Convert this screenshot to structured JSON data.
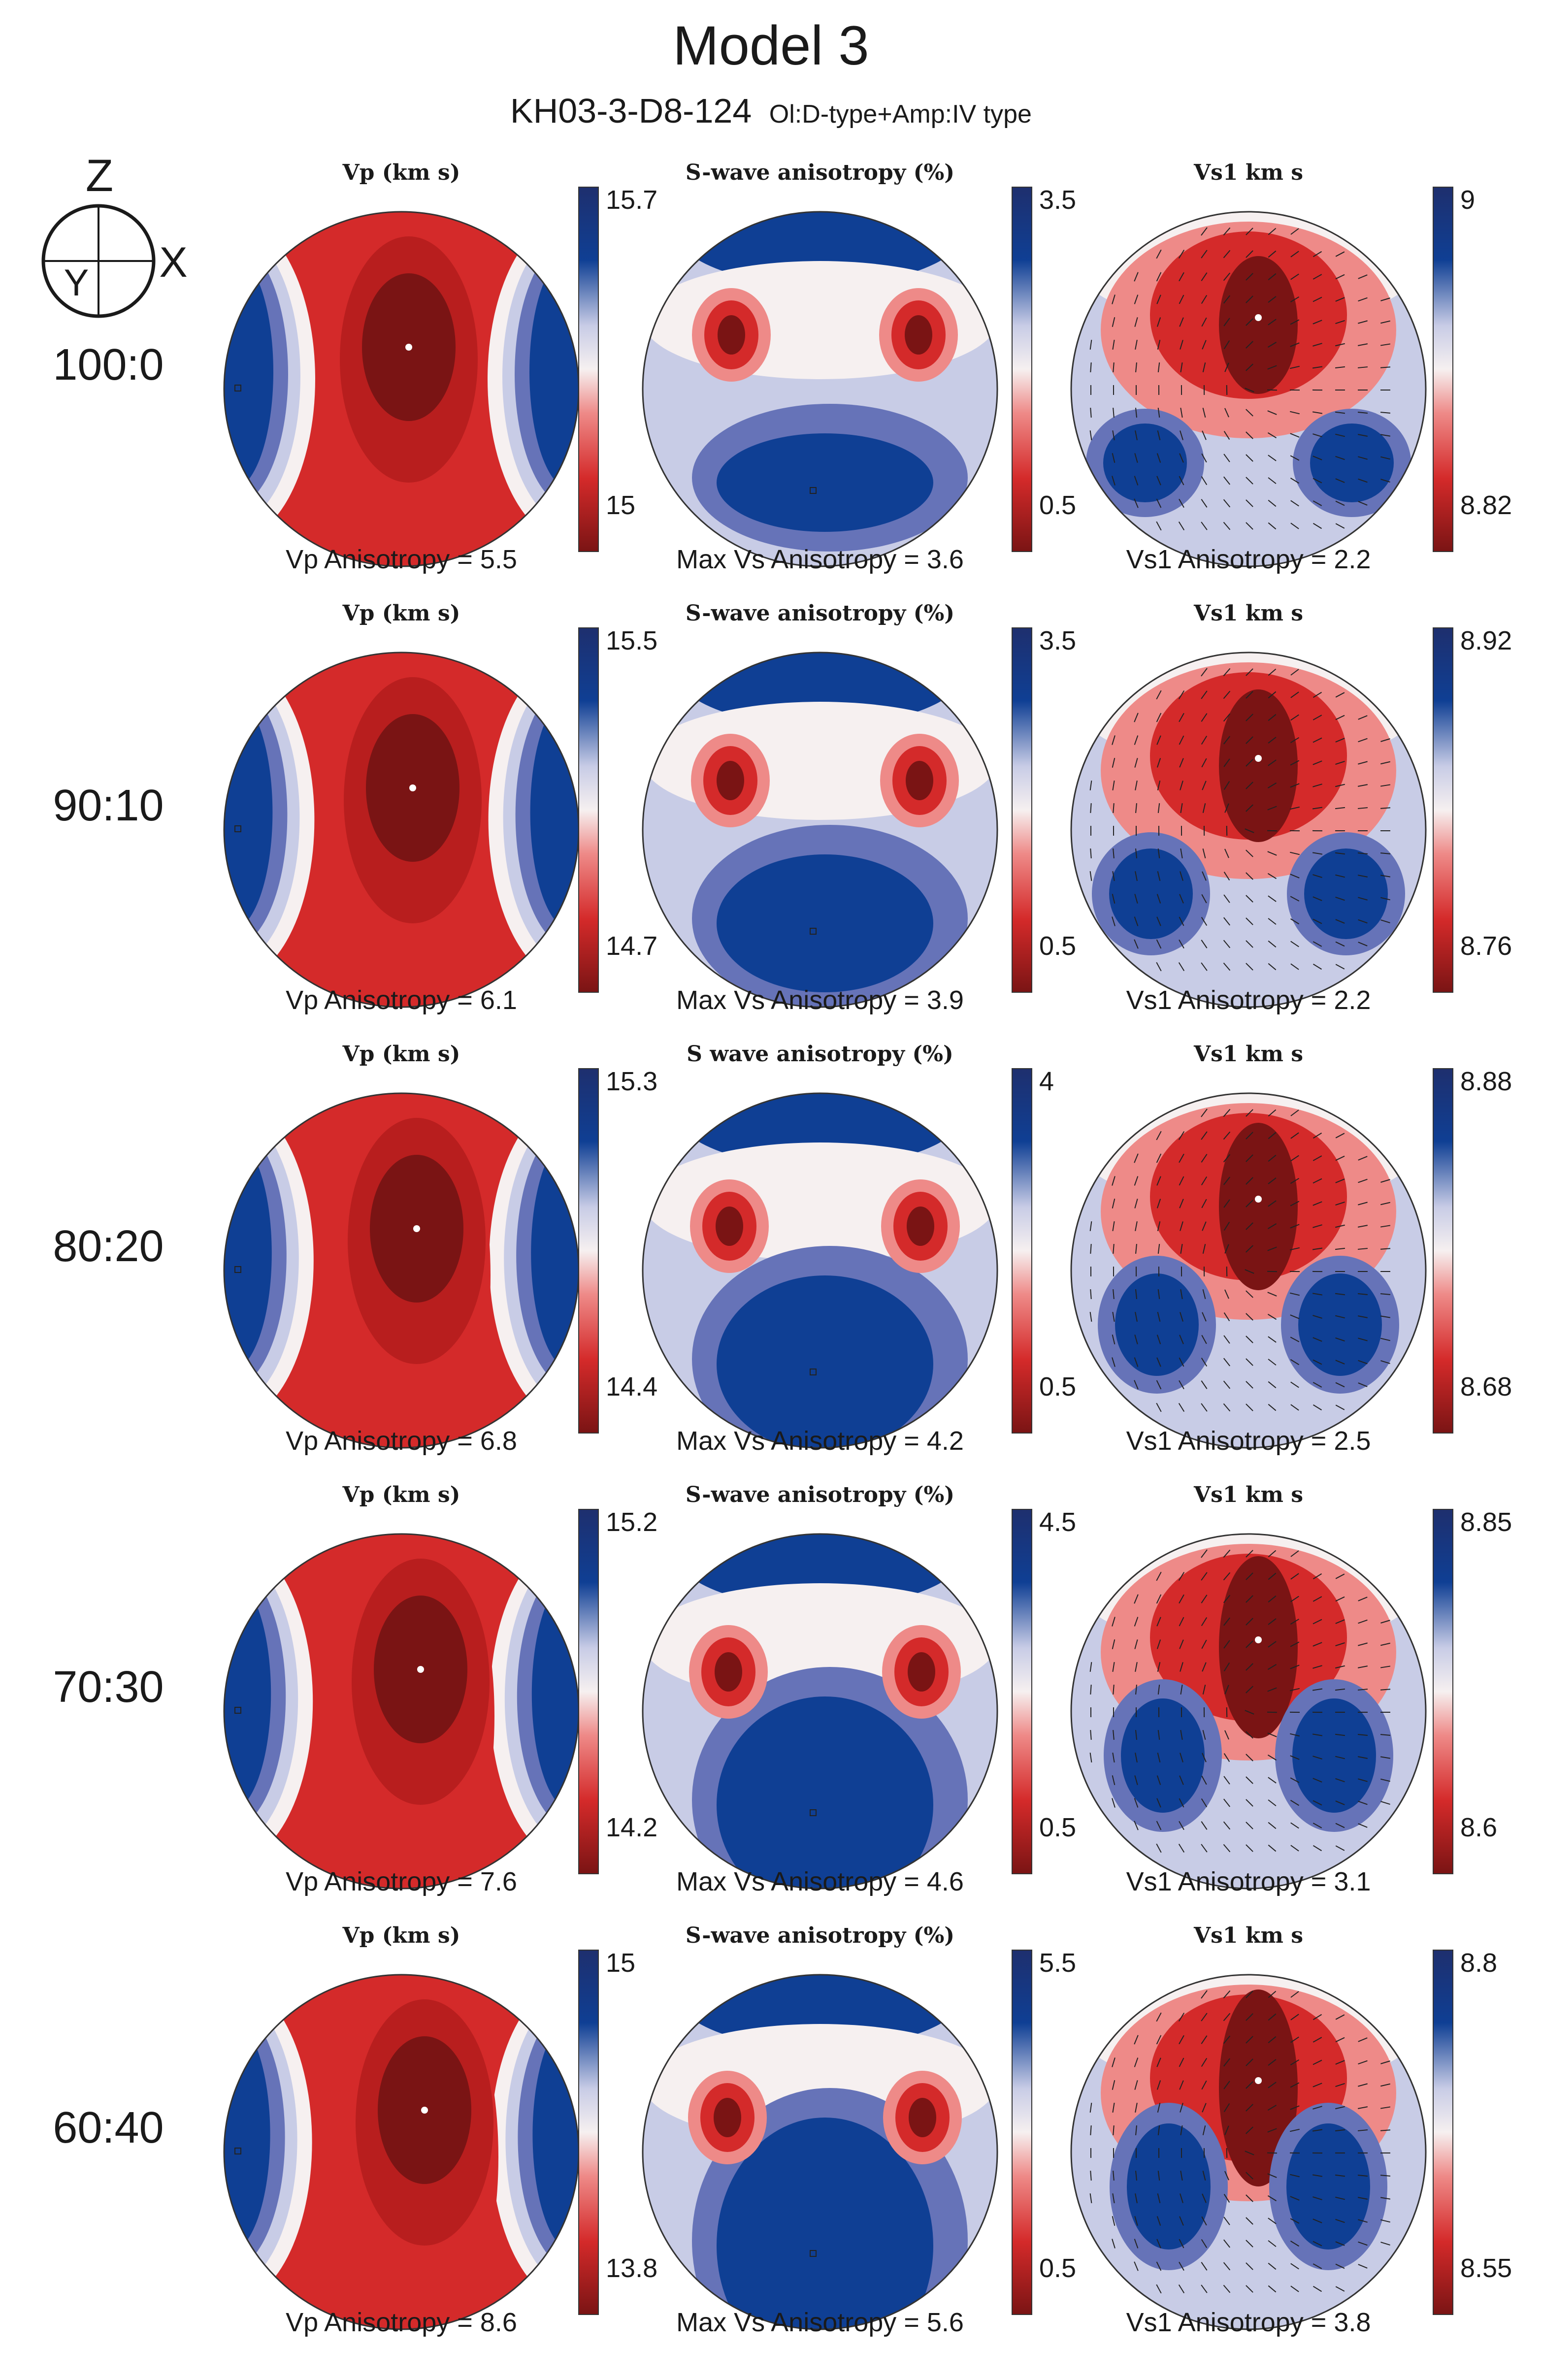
{
  "figure": {
    "title": "Model 3",
    "sample": "KH03-3-D8-124",
    "sample_type": "Ol:D-type+Amp:IV type",
    "axes_key": {
      "top": "Z",
      "right": "X",
      "center": "Y"
    }
  },
  "rows": [
    {
      "ratio": "100:0",
      "panels": [
        {
          "title": "Vp (km s)",
          "scale_max": "15.7",
          "scale_min": "15",
          "anisotropy": "Vp Anisotropy = 5.5",
          "kind": "vp"
        },
        {
          "title": "S-wave anisotropy (%)",
          "scale_max": "3.5",
          "scale_min": "0.5",
          "anisotropy": "Max Vs Anisotropy = 3.6",
          "kind": "av"
        },
        {
          "title": "Vs1  km s",
          "scale_max": "9",
          "scale_min": "8.82",
          "anisotropy": "Vs1 Anisotropy = 2.2",
          "kind": "vs"
        }
      ]
    },
    {
      "ratio": "90:10",
      "panels": [
        {
          "title": "Vp (km s)",
          "scale_max": "15.5",
          "scale_min": "14.7",
          "anisotropy": "Vp Anisotropy = 6.1",
          "kind": "vp"
        },
        {
          "title": "S-wave anisotropy (%)",
          "scale_max": "3.5",
          "scale_min": "0.5",
          "anisotropy": "Max Vs Anisotropy = 3.9",
          "kind": "av"
        },
        {
          "title": "Vs1  km s",
          "scale_max": "8.92",
          "scale_min": "8.76",
          "anisotropy": "Vs1 Anisotropy = 2.2",
          "kind": "vs"
        }
      ]
    },
    {
      "ratio": "80:20",
      "panels": [
        {
          "title": "Vp (km s)",
          "scale_max": "15.3",
          "scale_min": "14.4",
          "anisotropy": "Vp Anisotropy = 6.8",
          "kind": "vp"
        },
        {
          "title": "S wave anisotropy (%)",
          "scale_max": "4",
          "scale_min": "0.5",
          "anisotropy": "Max Vs Anisotropy = 4.2",
          "kind": "av"
        },
        {
          "title": "Vs1  km s",
          "scale_max": "8.88",
          "scale_min": "8.68",
          "anisotropy": "Vs1 Anisotropy = 2.5",
          "kind": "vs"
        }
      ]
    },
    {
      "ratio": "70:30",
      "panels": [
        {
          "title": "Vp (km s)",
          "scale_max": "15.2",
          "scale_min": "14.2",
          "anisotropy": "Vp Anisotropy = 7.6",
          "kind": "vp"
        },
        {
          "title": "S-wave anisotropy (%)",
          "scale_max": "4.5",
          "scale_min": "0.5",
          "anisotropy": "Max Vs Anisotropy = 4.6",
          "kind": "av"
        },
        {
          "title": "Vs1  km s",
          "scale_max": "8.85",
          "scale_min": "8.6",
          "anisotropy": "Vs1 Anisotropy = 3.1",
          "kind": "vs"
        }
      ]
    },
    {
      "ratio": "60:40",
      "panels": [
        {
          "title": "Vp (km s)",
          "scale_max": "15",
          "scale_min": "13.8",
          "anisotropy": "Vp Anisotropy = 8.6",
          "kind": "vp"
        },
        {
          "title": "S-wave anisotropy (%)",
          "scale_max": "5.5",
          "scale_min": "0.5",
          "anisotropy": "Max Vs Anisotropy = 5.6",
          "kind": "av"
        },
        {
          "title": "Vs1  km s",
          "scale_max": "8.8",
          "scale_min": "8.55",
          "anisotropy": "Vs1 Anisotropy = 3.8",
          "kind": "vs"
        }
      ]
    }
  ],
  "colors": {
    "dark_red": "#7a1414",
    "red": "#d42a2a",
    "light_red": "#ee8a88",
    "white": "#f6f0f0",
    "light_blue": "#c8cce6",
    "blue": "#6673b8",
    "dark_blue": "#0f3f94",
    "navy": "#1e2f6e"
  }
}
